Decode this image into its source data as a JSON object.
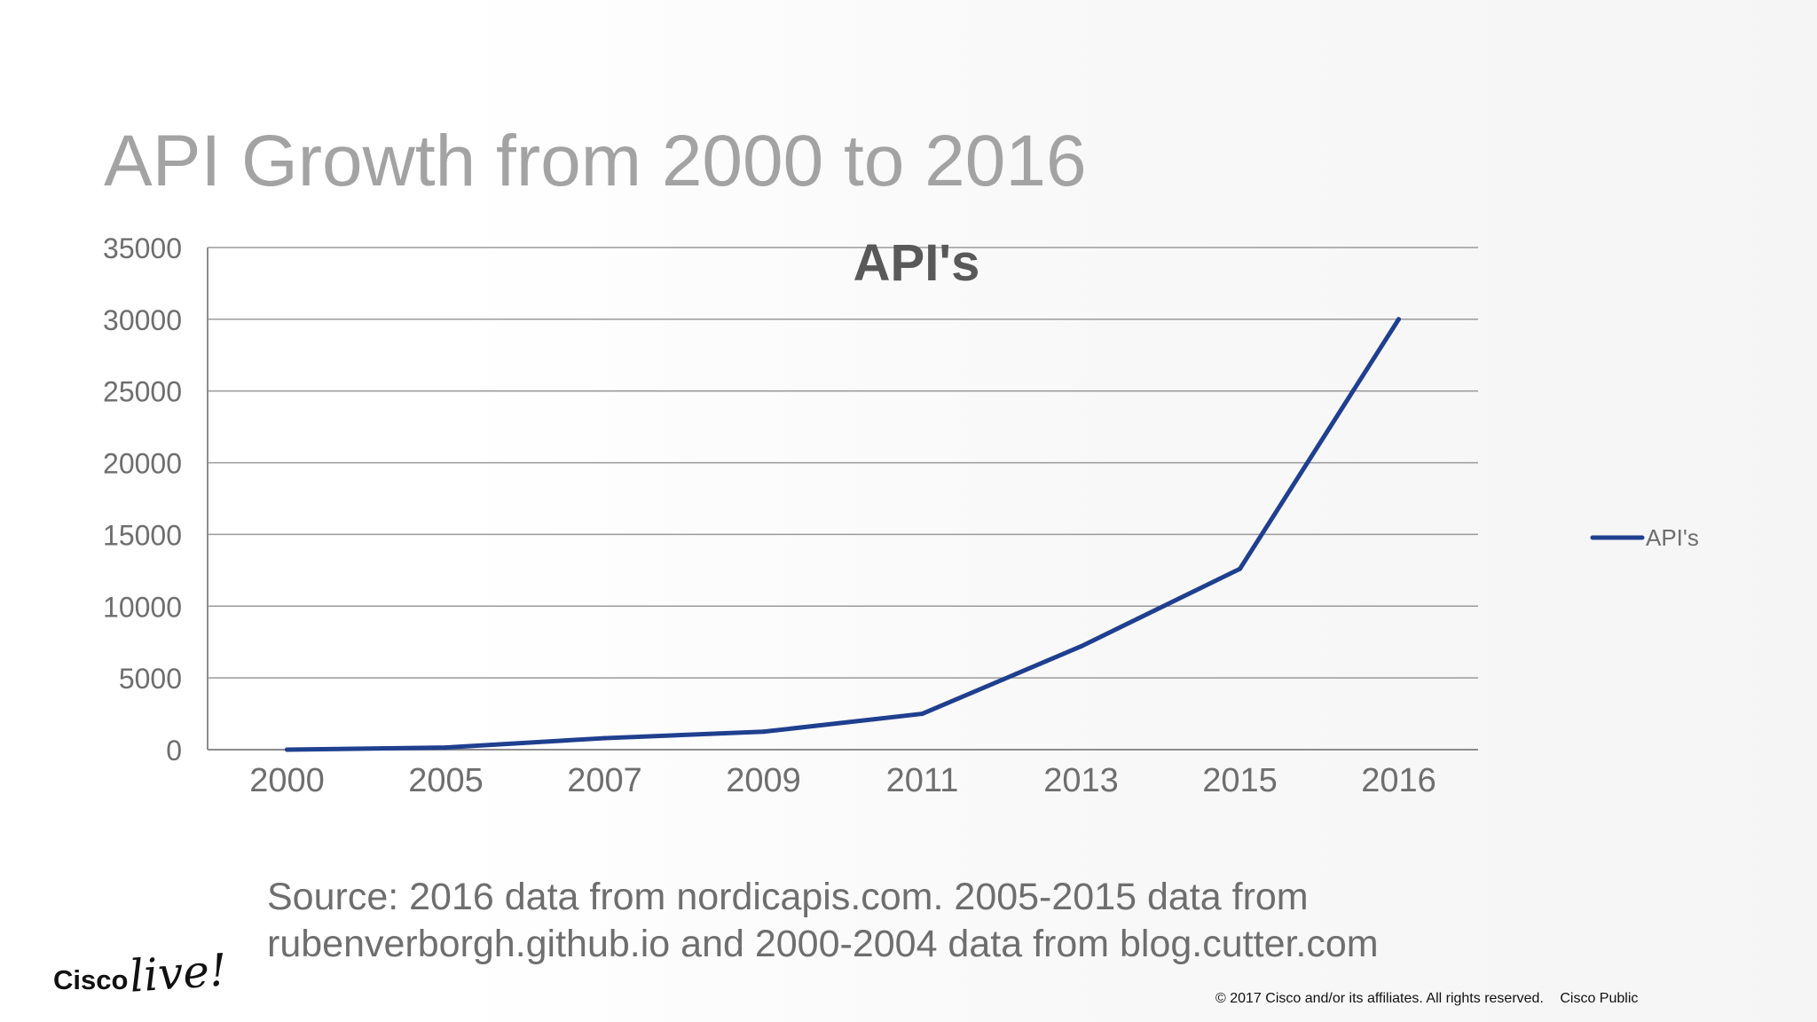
{
  "slide": {
    "title": "API Growth from 2000 to 2016",
    "source_line1": "Source: 2016 data from nordicapis.com. 2005-2015 data from",
    "source_line2": "rubenverborgh.github.io and 2000-2004 data from blog.cutter.com",
    "logo_text_1": "Cisco",
    "logo_text_2": "live!",
    "copyright": "© 2017  Cisco and/or its affiliates. All rights reserved.",
    "classification": "Cisco Public"
  },
  "chart_data": {
    "type": "line",
    "title": "API's",
    "xlabel": "",
    "ylabel": "",
    "categories": [
      "2000",
      "2005",
      "2007",
      "2009",
      "2011",
      "2013",
      "2015",
      "2016"
    ],
    "series": [
      {
        "name": "API's",
        "values": [
          0,
          150,
          800,
          1250,
          2500,
          7200,
          12600,
          30000
        ],
        "color": "#1f3f8f"
      }
    ],
    "ylim": [
      0,
      35000
    ],
    "yticks": [
      0,
      5000,
      10000,
      15000,
      20000,
      25000,
      30000,
      35000
    ],
    "grid": "horizontal",
    "legend": "right"
  }
}
